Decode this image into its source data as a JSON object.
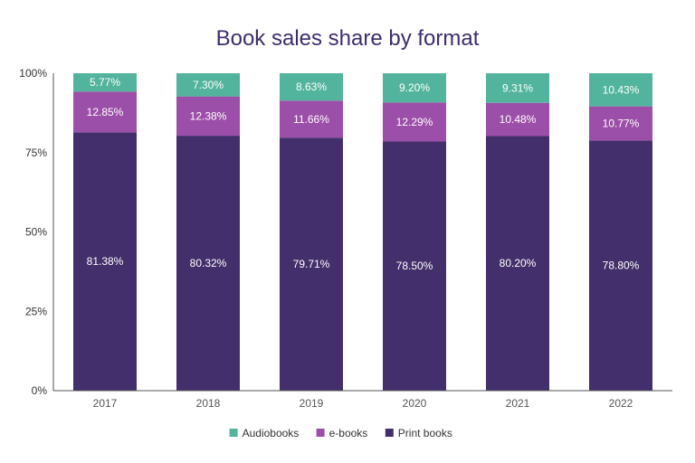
{
  "chart_data": {
    "type": "bar",
    "stacked": true,
    "title": "Book sales share by format",
    "xlabel": "",
    "ylabel": "",
    "ylim": [
      0,
      100
    ],
    "yticks": [
      "0%",
      "25%",
      "50%",
      "75%",
      "100%"
    ],
    "ytick_values": [
      0,
      25,
      50,
      75,
      100
    ],
    "categories": [
      "2017",
      "2018",
      "2019",
      "2020",
      "2021",
      "2022"
    ],
    "series": [
      {
        "name": "Print books",
        "color": "#432f6b",
        "values": [
          81.38,
          80.32,
          79.71,
          78.5,
          80.2,
          78.8
        ],
        "labels": [
          "81.38%",
          "80.32%",
          "79.71%",
          "78.50%",
          "80.20%",
          "78.80%"
        ]
      },
      {
        "name": "e-books",
        "color": "#9c4fa8",
        "values": [
          12.85,
          12.38,
          11.66,
          12.29,
          10.48,
          10.77
        ],
        "labels": [
          "12.85%",
          "12.38%",
          "11.66%",
          "12.29%",
          "10.48%",
          "10.77%"
        ]
      },
      {
        "name": "Audiobooks",
        "color": "#52b49c",
        "values": [
          5.77,
          7.3,
          8.63,
          9.2,
          9.31,
          10.43
        ],
        "labels": [
          "5.77%",
          "7.30%",
          "8.63%",
          "9.20%",
          "9.31%",
          "10.43%"
        ]
      }
    ],
    "legend_order": [
      "Audiobooks",
      "e-books",
      "Print books"
    ],
    "legend_position": "bottom",
    "grid": false
  }
}
